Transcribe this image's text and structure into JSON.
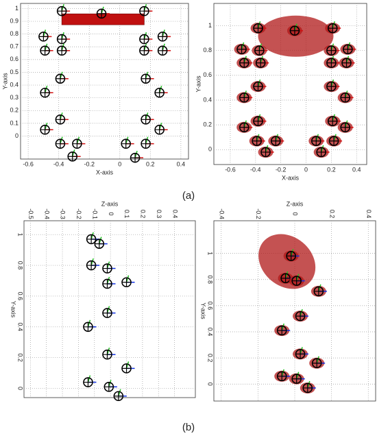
{
  "chart_data": [
    {
      "type": "scatter",
      "style": "skeleton",
      "x_axis_side": "bottom",
      "axis_color": "#d01010",
      "xlabel": "X-axis",
      "ylabel": "Y-axis",
      "x": [
        -0.38,
        -0.12,
        0.16,
        -0.38,
        -0.5,
        0.16,
        0.28,
        -0.49,
        -0.38,
        0.16,
        0.28,
        -0.39,
        0.17,
        -0.49,
        0.26,
        -0.39,
        0.17,
        -0.49,
        0.26,
        -0.39,
        -0.28,
        0.04,
        0.17,
        0.1,
        -0.31
      ],
      "values": [
        0.98,
        0.96,
        0.98,
        0.76,
        0.78,
        0.76,
        0.78,
        0.67,
        0.67,
        0.67,
        0.67,
        0.45,
        0.45,
        0.34,
        0.34,
        0.13,
        0.13,
        0.05,
        0.05,
        -0.06,
        -0.06,
        -0.06,
        -0.06,
        -0.17,
        -0.16
      ],
      "xlim": [
        -0.65,
        0.45
      ],
      "ylim": [
        -0.18,
        1.04
      ],
      "xticks": [
        -0.6,
        -0.4,
        -0.2,
        0,
        0.2,
        0.4
      ],
      "yticks": [
        0,
        0.1,
        0.2,
        0.3,
        0.4,
        0.5,
        0.6,
        0.7,
        0.8,
        0.9,
        1
      ],
      "grid": true
    },
    {
      "type": "scatter",
      "style": "ellipsoid",
      "x_axis_side": "bottom",
      "axis_color": "#d01010",
      "xlabel": "X-axis",
      "ylabel": "Y-axis",
      "x": [
        -0.09,
        -0.38,
        0.21,
        -0.51,
        -0.37,
        0.33,
        0.2,
        -0.49,
        -0.36,
        0.32,
        0.2,
        -0.38,
        0.2,
        -0.49,
        0.31,
        -0.38,
        0.21,
        -0.49,
        0.31,
        -0.39,
        -0.24,
        0.08,
        0.22,
        -0.32,
        0.12
      ],
      "values": [
        0.96,
        0.98,
        0.98,
        0.81,
        0.8,
        0.81,
        0.8,
        0.7,
        0.7,
        0.7,
        0.7,
        0.51,
        0.51,
        0.42,
        0.42,
        0.23,
        0.23,
        0.18,
        0.18,
        0.07,
        0.07,
        0.07,
        0.07,
        -0.02,
        -0.02
      ],
      "xlim": [
        -0.73,
        0.48
      ],
      "ylim": [
        -0.12,
        1.18
      ],
      "xticks": [
        -0.6,
        -0.4,
        -0.2,
        0,
        0.2,
        0.4
      ],
      "yticks": [
        0,
        0.2,
        0.4,
        0.6,
        0.8,
        1
      ],
      "grid": true
    },
    {
      "type": "scatter",
      "style": "skeleton",
      "x_axis_side": "top",
      "axis_color": "#1030e0",
      "xlabel": "Z-axis",
      "ylabel": "Y-axis",
      "x": [
        -0.12,
        -0.07,
        -0.12,
        -0.02,
        -0.02,
        0.1,
        -0.02,
        -0.14,
        -0.02,
        0.1,
        -0.14,
        -0.01,
        0.05
      ],
      "values": [
        0.97,
        0.94,
        0.8,
        0.78,
        0.68,
        0.69,
        0.49,
        0.4,
        0.22,
        0.13,
        0.04,
        0.01,
        -0.05
      ],
      "xlim": [
        -0.54,
        0.53
      ],
      "ylim": [
        -0.06,
        1.09
      ],
      "xticks": [
        -0.5,
        -0.4,
        -0.3,
        -0.2,
        -0.1,
        0,
        0.1,
        0.2,
        0.3,
        0.4
      ],
      "yticks": [
        0,
        0.2,
        0.4,
        0.6,
        0.8,
        1
      ],
      "grid": true
    },
    {
      "type": "scatter",
      "style": "ellipsoid",
      "x_axis_side": "top",
      "axis_color": "#1030e0",
      "xlabel": "Z-axis",
      "ylabel": "Y-axis",
      "x": [
        -0.02,
        -0.05,
        0.01,
        0.13,
        0.03,
        -0.07,
        0.03,
        0.12,
        -0.07,
        0.01,
        0.07
      ],
      "values": [
        0.98,
        0.81,
        0.79,
        0.71,
        0.52,
        0.41,
        0.23,
        0.16,
        0.06,
        0.04,
        -0.03
      ],
      "xlim": [
        -0.44,
        0.44
      ],
      "ylim": [
        -0.13,
        1.25
      ],
      "xticks": [
        -0.4,
        -0.2,
        0,
        0.2,
        0.4
      ],
      "yticks": [
        0,
        0.2,
        0.4,
        0.6,
        0.8,
        1
      ],
      "grid": true
    }
  ],
  "captions": [
    "(a)",
    "(b)"
  ]
}
